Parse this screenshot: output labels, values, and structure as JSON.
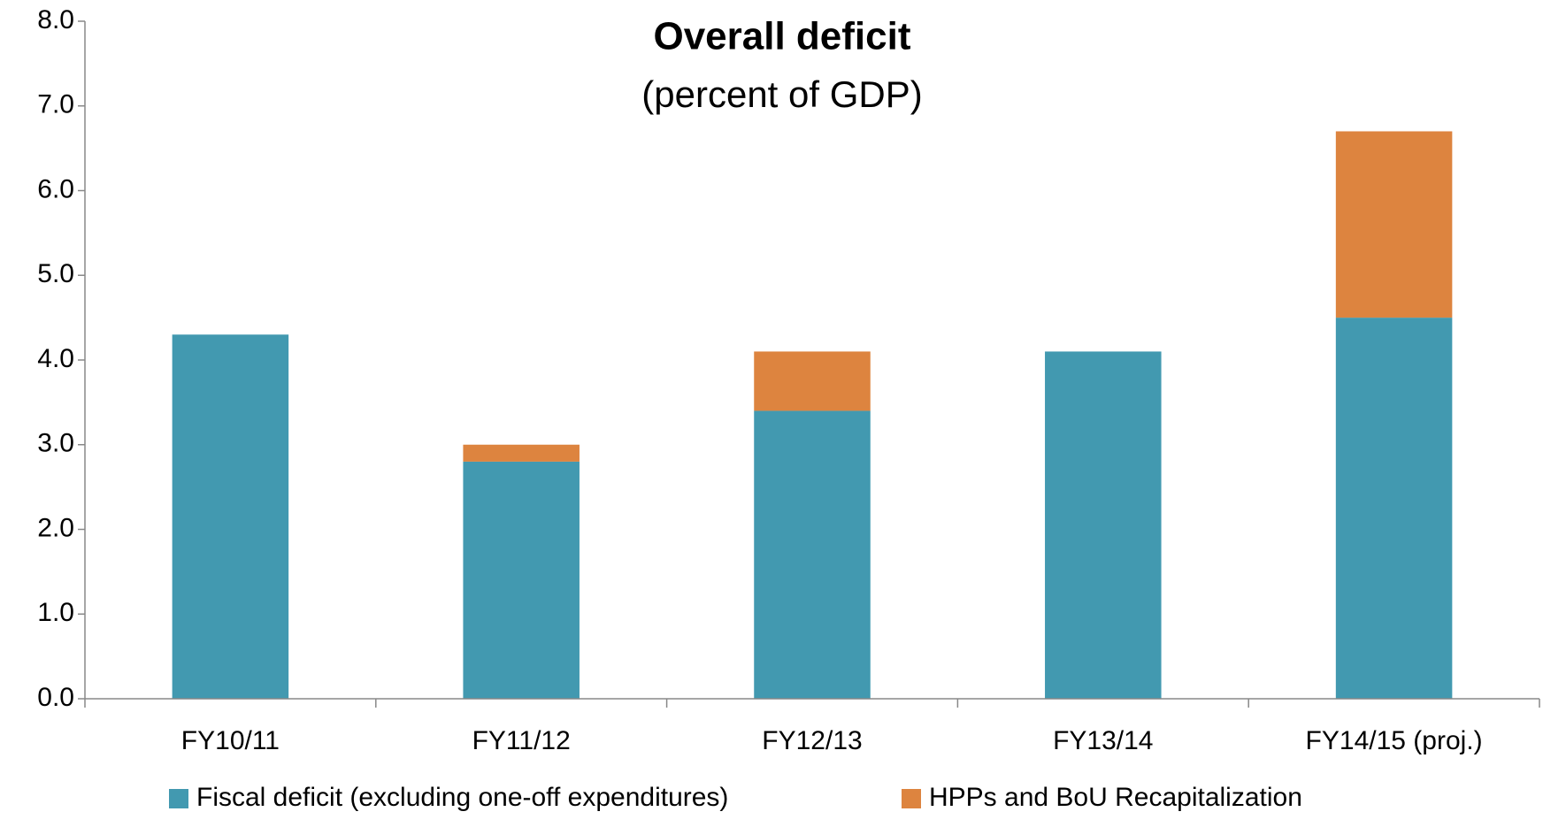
{
  "chart_data": {
    "type": "stacked_bar",
    "title": "Overall deficit",
    "subtitle": "(percent of GDP)",
    "categories": [
      "FY10/11",
      "FY11/12",
      "FY12/13",
      "FY13/14",
      "FY14/15 (proj.)"
    ],
    "series": [
      {
        "name": "Fiscal deficit (excluding one-off expenditures)",
        "color": "#4299b0",
        "values": [
          4.3,
          2.8,
          3.4,
          4.1,
          4.5
        ]
      },
      {
        "name": "HPPs and BoU Recapitalization",
        "color": "#dd843f",
        "values": [
          0,
          0.2,
          0.7,
          0,
          2.2
        ]
      }
    ],
    "ylim": [
      0,
      8
    ],
    "yticks": [
      {
        "value": 0,
        "label": "0.0"
      },
      {
        "value": 1,
        "label": "1.0"
      },
      {
        "value": 2,
        "label": "2.0"
      },
      {
        "value": 3,
        "label": "3.0"
      },
      {
        "value": 4,
        "label": "4.0"
      },
      {
        "value": 5,
        "label": "5.0"
      },
      {
        "value": 6,
        "label": "6.0"
      },
      {
        "value": 7,
        "label": "7.0"
      },
      {
        "value": 8,
        "label": "8.0"
      }
    ],
    "grid": false,
    "legend": "bottom"
  }
}
